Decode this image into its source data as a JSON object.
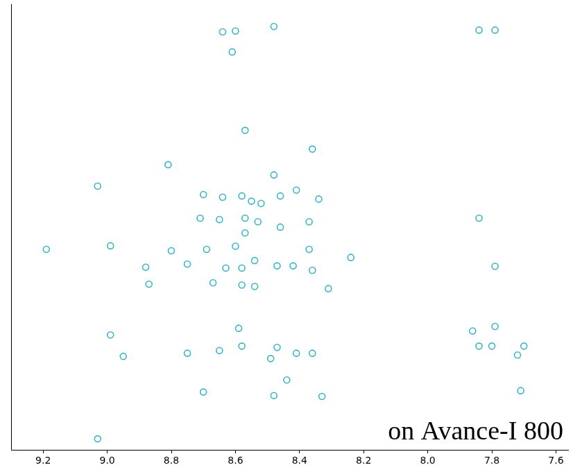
{
  "chart_data": {
    "type": "scatter",
    "annotation": "on Avance-I 800",
    "x": [
      8.6,
      8.64,
      8.48,
      7.84,
      7.79,
      8.61,
      8.57,
      8.36,
      8.81,
      9.03,
      8.48,
      8.64,
      8.7,
      8.58,
      8.52,
      8.55,
      8.46,
      8.41,
      8.34,
      8.65,
      8.71,
      8.57,
      8.53,
      8.37,
      8.57,
      8.46,
      7.84,
      9.19,
      8.99,
      8.8,
      8.69,
      8.6,
      8.37,
      8.24,
      8.88,
      8.75,
      8.63,
      8.58,
      8.54,
      8.47,
      8.42,
      8.36,
      8.31,
      8.58,
      8.54,
      8.67,
      8.87,
      7.79,
      8.99,
      8.95,
      8.75,
      8.65,
      8.59,
      8.58,
      8.47,
      8.41,
      8.49,
      8.36,
      7.86,
      7.84,
      7.8,
      7.79,
      7.72,
      7.7,
      8.7,
      8.48,
      8.33,
      8.44,
      7.71,
      9.03
    ],
    "values": [
      94.0,
      93.8,
      95.0,
      94.2,
      94.2,
      89.3,
      71.7,
      67.5,
      64.0,
      59.2,
      61.7,
      56.7,
      57.3,
      57.0,
      55.3,
      55.8,
      57.0,
      58.3,
      56.3,
      51.7,
      52.0,
      52.0,
      51.2,
      51.2,
      48.7,
      50.0,
      52.0,
      45.0,
      45.8,
      44.7,
      45.0,
      45.7,
      45.0,
      43.2,
      41.0,
      41.7,
      40.8,
      40.8,
      42.5,
      41.3,
      41.3,
      40.3,
      36.2,
      37.0,
      36.7,
      37.5,
      37.2,
      41.2,
      25.8,
      21.0,
      21.7,
      22.3,
      27.3,
      23.3,
      23.0,
      21.7,
      20.5,
      21.7,
      26.7,
      23.3,
      23.3,
      27.7,
      21.3,
      23.3,
      13.0,
      12.2,
      12.0,
      15.7,
      13.3,
      2.5
    ],
    "color": "#3cb4c8",
    "marker": "circle",
    "xlim": [
      9.3,
      7.56
    ],
    "xticks": [
      {
        "value": 9.2,
        "label": "9.2"
      },
      {
        "value": 9.0,
        "label": "9.0"
      },
      {
        "value": 8.8,
        "label": "8.8"
      },
      {
        "value": 8.6,
        "label": "8.6"
      },
      {
        "value": 8.4,
        "label": "8.4"
      },
      {
        "value": 8.2,
        "label": "8.2"
      },
      {
        "value": 8.0,
        "label": "8.0"
      },
      {
        "value": 7.8,
        "label": "7.8"
      },
      {
        "value": 7.6,
        "label": "7.6"
      }
    ],
    "ylim": [
      0,
      100
    ],
    "grid": false,
    "tick_labels": "x"
  }
}
